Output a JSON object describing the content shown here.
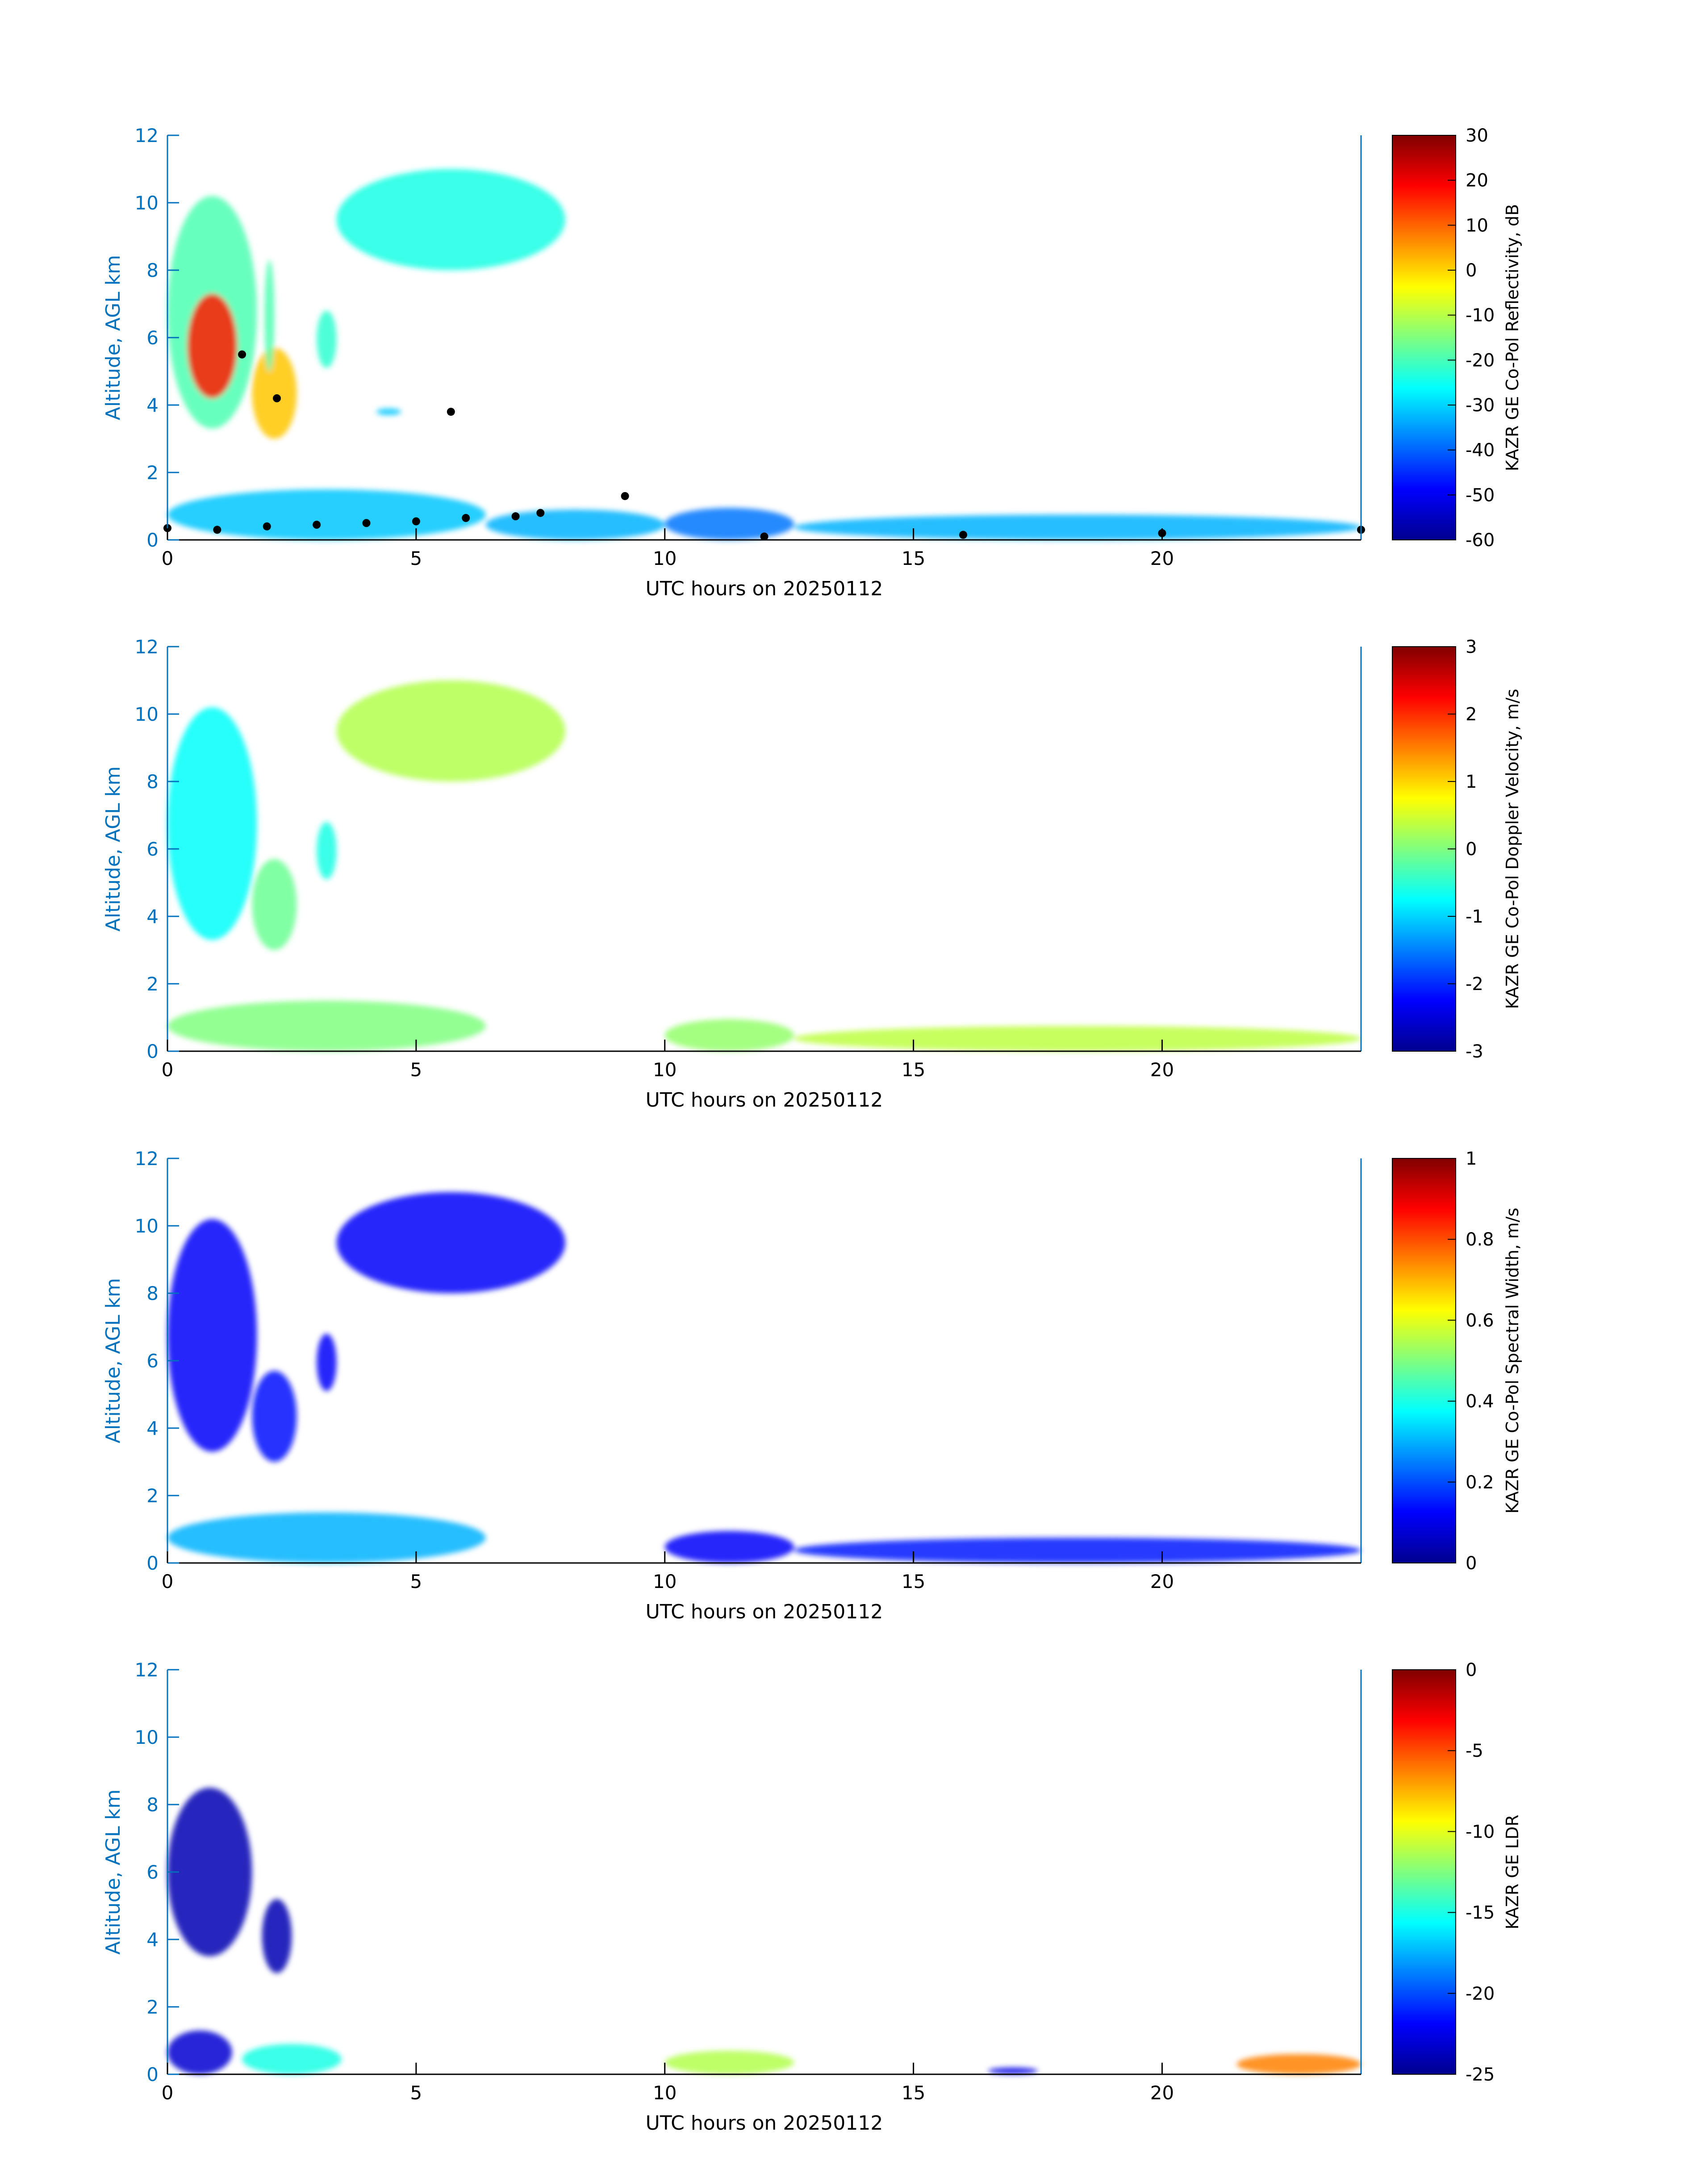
{
  "chart_data": [
    {
      "type": "heatmap",
      "xlabel": "UTC hours on 20250112",
      "ylabel": "Altitude, AGL km",
      "xlim": [
        0,
        24
      ],
      "ylim": [
        0,
        12
      ],
      "xticks": [
        "0",
        "5",
        "10",
        "15",
        "20"
      ],
      "yticks": [
        "0",
        "2",
        "4",
        "6",
        "8",
        "10",
        "12"
      ],
      "colorbar": {
        "label": "KAZR GE Co-Pol Reflectivity, dB",
        "range": [
          -60,
          30
        ],
        "ticks": [
          "30",
          "20",
          "10",
          "0",
          "-10",
          "-20",
          "-30",
          "-40",
          "-50",
          "-60"
        ],
        "colormap": "jet"
      },
      "regions": [
        {
          "x": [
            0,
            1.8
          ],
          "y": [
            3.3,
            10.2
          ],
          "level": 0.45
        },
        {
          "x": [
            0.4,
            1.4
          ],
          "y": [
            4.2,
            7.3
          ],
          "level": 0.85
        },
        {
          "x": [
            1.7,
            2.6
          ],
          "y": [
            3.0,
            5.7
          ],
          "level": 0.68
        },
        {
          "x": [
            1.95,
            2.15
          ],
          "y": [
            5.0,
            8.3
          ],
          "level": 0.45
        },
        {
          "x": [
            3.0,
            3.4
          ],
          "y": [
            5.1,
            6.8
          ],
          "level": 0.42
        },
        {
          "x": [
            3.4,
            8.0
          ],
          "y": [
            8.0,
            11.0
          ],
          "level": 0.4
        },
        {
          "x": [
            4.2,
            4.7
          ],
          "y": [
            3.7,
            3.9
          ],
          "level": 0.32
        },
        {
          "x": [
            0,
            6.4
          ],
          "y": [
            0,
            1.5
          ],
          "level": 0.32
        },
        {
          "x": [
            6.4,
            10.0
          ],
          "y": [
            0,
            0.9
          ],
          "level": 0.3
        },
        {
          "x": [
            10.0,
            12.6
          ],
          "y": [
            0,
            0.95
          ],
          "level": 0.24
        },
        {
          "x": [
            12.6,
            24.0
          ],
          "y": [
            0,
            0.75
          ],
          "level": 0.3
        }
      ],
      "cloud_base_points": [
        [
          0.0,
          0.35
        ],
        [
          1.0,
          0.3
        ],
        [
          2.0,
          0.4
        ],
        [
          3.0,
          0.45
        ],
        [
          4.0,
          0.5
        ],
        [
          5.0,
          0.55
        ],
        [
          6.0,
          0.65
        ],
        [
          7.0,
          0.7
        ],
        [
          7.5,
          0.8
        ],
        [
          9.2,
          1.3
        ],
        [
          12.0,
          0.1
        ],
        [
          16.0,
          0.15
        ],
        [
          20.0,
          0.2
        ],
        [
          24.0,
          0.3
        ],
        [
          1.5,
          5.5
        ],
        [
          2.2,
          4.2
        ],
        [
          5.7,
          3.8
        ]
      ]
    },
    {
      "type": "heatmap",
      "xlabel": "UTC hours on 20250112",
      "ylabel": "Altitude, AGL km",
      "xlim": [
        0,
        24
      ],
      "ylim": [
        0,
        12
      ],
      "xticks": [
        "0",
        "5",
        "10",
        "15",
        "20"
      ],
      "yticks": [
        "0",
        "2",
        "4",
        "6",
        "8",
        "10",
        "12"
      ],
      "colorbar": {
        "label": "KAZR GE Co-Pol Doppler Velocity, m/s",
        "range": [
          -3,
          3
        ],
        "ticks": [
          "3",
          "2",
          "1",
          "0",
          "-1",
          "-2",
          "-3"
        ],
        "colormap": "jet"
      },
      "regions": [
        {
          "x": [
            0,
            1.8
          ],
          "y": [
            3.3,
            10.2
          ],
          "level": 0.38
        },
        {
          "x": [
            1.7,
            2.6
          ],
          "y": [
            3.0,
            5.7
          ],
          "level": 0.48
        },
        {
          "x": [
            3.0,
            3.4
          ],
          "y": [
            5.1,
            6.8
          ],
          "level": 0.4
        },
        {
          "x": [
            3.4,
            8.0
          ],
          "y": [
            8.0,
            11.0
          ],
          "level": 0.55
        },
        {
          "x": [
            0,
            6.4
          ],
          "y": [
            0,
            1.5
          ],
          "level": 0.5
        },
        {
          "x": [
            10.0,
            12.6
          ],
          "y": [
            0,
            0.95
          ],
          "level": 0.52
        },
        {
          "x": [
            12.6,
            24.0
          ],
          "y": [
            0,
            0.75
          ],
          "level": 0.56
        }
      ]
    },
    {
      "type": "heatmap",
      "xlabel": "UTC hours on 20250112",
      "ylabel": "Altitude, AGL km",
      "xlim": [
        0,
        24
      ],
      "ylim": [
        0,
        12
      ],
      "xticks": [
        "0",
        "5",
        "10",
        "15",
        "20"
      ],
      "yticks": [
        "0",
        "2",
        "4",
        "6",
        "8",
        "10",
        "12"
      ],
      "colorbar": {
        "label": "KAZR GE Co-Pol Spectral Width, m/s",
        "range": [
          0,
          1
        ],
        "ticks": [
          "1",
          "0.8",
          "0.6",
          "0.4",
          "0.2",
          "0"
        ],
        "colormap": "jet"
      },
      "regions": [
        {
          "x": [
            0,
            1.8
          ],
          "y": [
            3.3,
            10.2
          ],
          "level": 0.12
        },
        {
          "x": [
            1.7,
            2.6
          ],
          "y": [
            3.0,
            5.7
          ],
          "level": 0.14
        },
        {
          "x": [
            3.0,
            3.4
          ],
          "y": [
            5.1,
            6.8
          ],
          "level": 0.12
        },
        {
          "x": [
            3.4,
            8.0
          ],
          "y": [
            8.0,
            11.0
          ],
          "level": 0.12
        },
        {
          "x": [
            0,
            6.4
          ],
          "y": [
            0,
            1.5
          ],
          "level": 0.3
        },
        {
          "x": [
            10.0,
            12.6
          ],
          "y": [
            0,
            0.95
          ],
          "level": 0.12
        },
        {
          "x": [
            12.6,
            24.0
          ],
          "y": [
            0,
            0.75
          ],
          "level": 0.15
        }
      ]
    },
    {
      "type": "heatmap",
      "xlabel": "UTC hours on 20250112",
      "ylabel": "Altitude, AGL km",
      "xlim": [
        0,
        24
      ],
      "ylim": [
        0,
        12
      ],
      "xticks": [
        "0",
        "5",
        "10",
        "15",
        "20"
      ],
      "yticks": [
        "0",
        "2",
        "4",
        "6",
        "8",
        "10",
        "12"
      ],
      "colorbar": {
        "label": "KAZR GE LDR",
        "range": [
          -25,
          0
        ],
        "ticks": [
          "0",
          "-5",
          "-10",
          "-15",
          "-20",
          "-25"
        ],
        "colormap": "jet"
      },
      "regions": [
        {
          "x": [
            0,
            1.7
          ],
          "y": [
            3.5,
            8.5
          ],
          "level": 0.05
        },
        {
          "x": [
            1.9,
            2.5
          ],
          "y": [
            3.0,
            5.2
          ],
          "level": 0.05
        },
        {
          "x": [
            0,
            1.3
          ],
          "y": [
            0,
            1.3
          ],
          "level": 0.08
        },
        {
          "x": [
            1.5,
            3.5
          ],
          "y": [
            0,
            0.9
          ],
          "level": 0.4
        },
        {
          "x": [
            10.0,
            12.6
          ],
          "y": [
            0,
            0.7
          ],
          "level": 0.55
        },
        {
          "x": [
            16.5,
            17.5
          ],
          "y": [
            0,
            0.2
          ],
          "level": 0.1
        },
        {
          "x": [
            21.5,
            24.0
          ],
          "y": [
            0,
            0.6
          ],
          "level": 0.75
        }
      ]
    }
  ]
}
